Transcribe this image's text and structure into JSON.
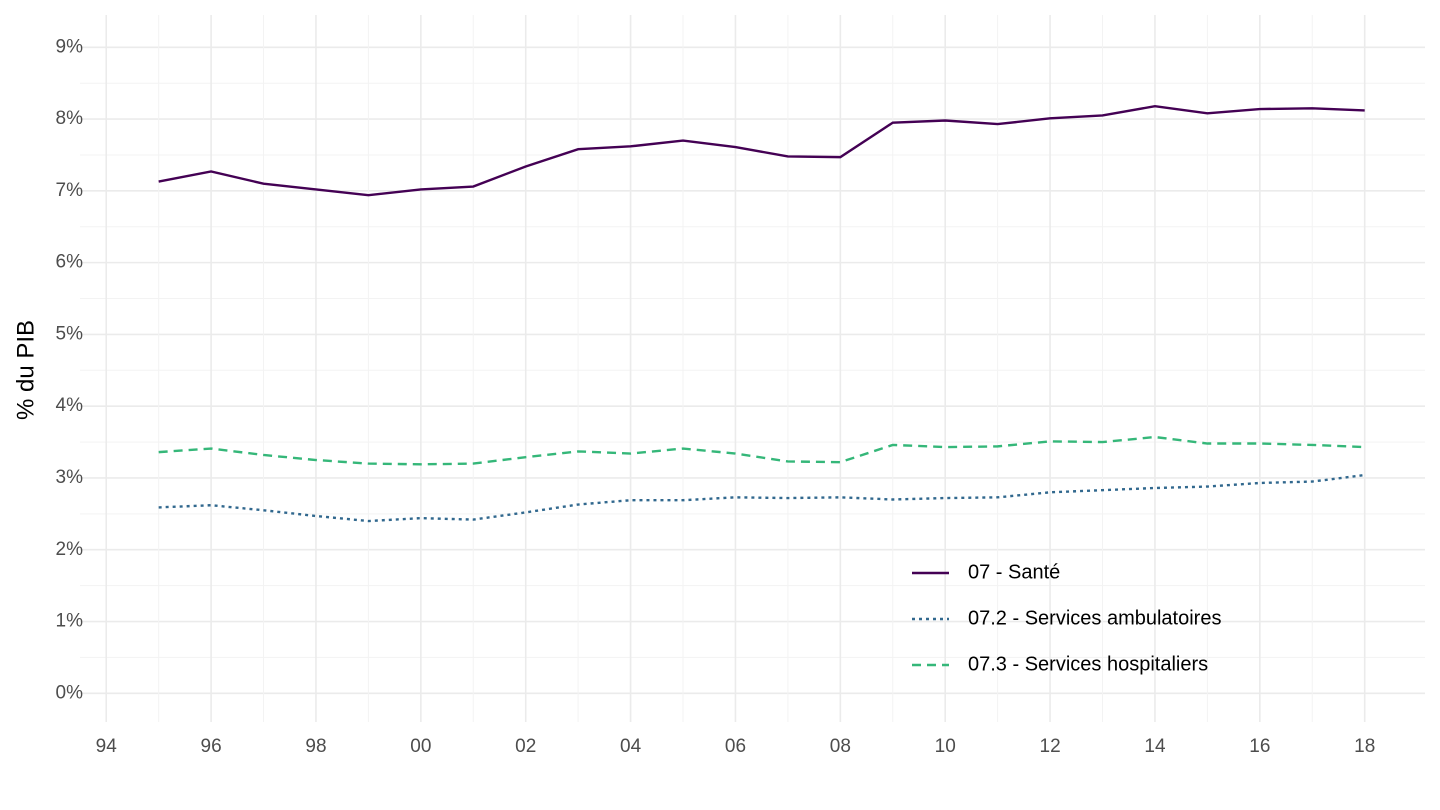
{
  "chart_data": {
    "type": "line",
    "y_label": "% du PIB",
    "x": [
      1995,
      1996,
      1997,
      1998,
      1999,
      2000,
      2001,
      2002,
      2003,
      2004,
      2005,
      2006,
      2007,
      2008,
      2009,
      2010,
      2011,
      2012,
      2013,
      2014,
      2015,
      2016,
      2017,
      2018
    ],
    "series": [
      {
        "name": "07 - Santé",
        "color": "#440154",
        "dash": "solid",
        "values": [
          7.13,
          7.27,
          7.1,
          7.02,
          6.94,
          7.02,
          7.06,
          7.34,
          7.58,
          7.62,
          7.7,
          7.61,
          7.48,
          7.47,
          7.95,
          7.98,
          7.93,
          8.01,
          8.05,
          8.18,
          8.08,
          8.14,
          8.15,
          8.12
        ]
      },
      {
        "name": "07.2 - Services ambulatoires",
        "color": "#31688e",
        "dash": "dotted",
        "values": [
          2.59,
          2.62,
          2.55,
          2.47,
          2.4,
          2.44,
          2.42,
          2.52,
          2.63,
          2.69,
          2.69,
          2.73,
          2.72,
          2.73,
          2.7,
          2.72,
          2.73,
          2.8,
          2.83,
          2.86,
          2.88,
          2.93,
          2.95,
          3.04
        ]
      },
      {
        "name": "07.3 - Services hospitaliers",
        "color": "#35b779",
        "dash": "dashed",
        "values": [
          3.36,
          3.41,
          3.32,
          3.25,
          3.2,
          3.19,
          3.2,
          3.29,
          3.37,
          3.34,
          3.41,
          3.34,
          3.23,
          3.22,
          3.46,
          3.43,
          3.44,
          3.51,
          3.5,
          3.57,
          3.48,
          3.48,
          3.46,
          3.43
        ]
      }
    ],
    "xlim": [
      1993.5,
      2019.15
    ],
    "xticks": [
      {
        "value": 1994,
        "label": "94"
      },
      {
        "value": 1996,
        "label": "96"
      },
      {
        "value": 1998,
        "label": "98"
      },
      {
        "value": 2000,
        "label": "00"
      },
      {
        "value": 2002,
        "label": "02"
      },
      {
        "value": 2004,
        "label": "04"
      },
      {
        "value": 2006,
        "label": "06"
      },
      {
        "value": 2008,
        "label": "08"
      },
      {
        "value": 2010,
        "label": "10"
      },
      {
        "value": 2012,
        "label": "12"
      },
      {
        "value": 2014,
        "label": "14"
      },
      {
        "value": 2016,
        "label": "16"
      },
      {
        "value": 2018,
        "label": "18"
      }
    ],
    "ylim": [
      -0.4,
      9.45
    ],
    "yticks": [
      {
        "value": 0,
        "label": "0%"
      },
      {
        "value": 1,
        "label": "1%"
      },
      {
        "value": 2,
        "label": "2%"
      },
      {
        "value": 3,
        "label": "3%"
      },
      {
        "value": 4,
        "label": "4%"
      },
      {
        "value": 5,
        "label": "5%"
      },
      {
        "value": 6,
        "label": "6%"
      },
      {
        "value": 7,
        "label": "7%"
      },
      {
        "value": 8,
        "label": "8%"
      },
      {
        "value": 9,
        "label": "9%"
      }
    ],
    "grid": true,
    "legend_position": "bottom-right"
  }
}
